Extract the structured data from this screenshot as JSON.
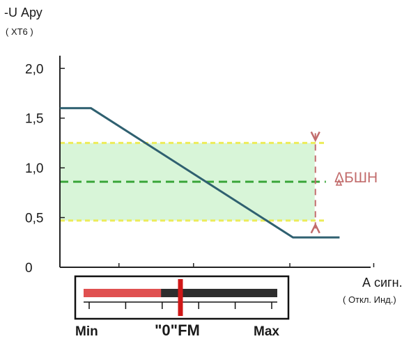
{
  "chart_data": {
    "type": "line",
    "y_title": "-U Ару",
    "y_subtitle": "( ХТ6 )",
    "x_title": "А сигн.",
    "x_subtitle": "( Откл. Инд.)",
    "y_ticks": [
      "0",
      "0,5",
      "1,0",
      "1,5",
      "2,0"
    ],
    "y_tick_values": [
      0,
      0.5,
      1.0,
      1.5,
      2.0
    ],
    "ylim": [
      0,
      2.1
    ],
    "xlim": [
      0,
      10
    ],
    "x_tick_positions": [
      1.9,
      4.3,
      7.4,
      10.1
    ],
    "series": [
      {
        "x": [
          0,
          1.0,
          7.5,
          9.0
        ],
        "y": [
          1.6,
          1.6,
          0.3,
          0.3
        ],
        "color": "#2f6070"
      }
    ],
    "band": {
      "low": 0.47,
      "high": 1.25,
      "x_end": 8.2,
      "fill": "#d8f5d8",
      "edge_color": "#ecec58"
    },
    "center_line": {
      "y": 0.86,
      "color": "#3aa63a"
    },
    "delta": {
      "label": "ΔБШН",
      "x": 8.2,
      "color": "#c26c6c"
    }
  },
  "indicator": {
    "min_label": "Min",
    "zero_label": "\"0\"FM",
    "max_label": "Max",
    "fill_fraction": 0.4,
    "marker_fraction": 0.5,
    "tick_count": 6,
    "fill_color": "#e05050",
    "bar_color": "#2e2e2e",
    "marker_color": "#d01818"
  }
}
